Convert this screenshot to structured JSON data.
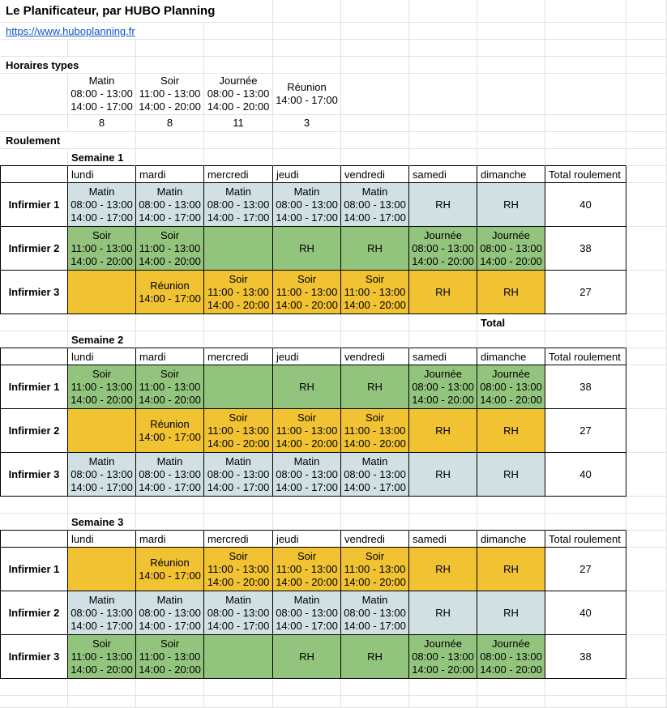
{
  "app": {
    "title": "Le Planificateur, par HUBO Planning",
    "link": "https://www.huboplanning.fr"
  },
  "colors": {
    "blue": "#d0e0e3",
    "green": "#93c47d",
    "orange": "#f1c232",
    "link_blue": "#1155cc",
    "gridline": "#e2e2e2",
    "table_border": "#000000"
  },
  "horaires_types": {
    "label": "Horaires types",
    "shifts": [
      {
        "name": "Matin",
        "times": [
          "08:00 - 13:00",
          "14:00 - 17:00"
        ],
        "hours": "8"
      },
      {
        "name": "Soir",
        "times": [
          "11:00 - 13:00",
          "14:00 - 20:00"
        ],
        "hours": "8"
      },
      {
        "name": "Journée",
        "times": [
          "08:00 - 13:00",
          "14:00 - 20:00"
        ],
        "hours": "11"
      },
      {
        "name": "Réunion",
        "times": [
          "14:00 - 17:00"
        ],
        "hours": "3"
      }
    ]
  },
  "roulement": {
    "label": "Roulement",
    "days": [
      "lundi",
      "mardi",
      "mercredi",
      "jeudi",
      "vendredi",
      "samedi",
      "dimanche"
    ],
    "total_header": "Total roulement",
    "weeks": [
      {
        "label": "Semaine 1",
        "after_label": "Total",
        "rows": [
          {
            "name": "Infirmier 1",
            "color": "blue",
            "total": "40",
            "cells": [
              [
                "Matin",
                "08:00 - 13:00",
                "14:00 - 17:00"
              ],
              [
                "Matin",
                "08:00 - 13:00",
                "14:00 - 17:00"
              ],
              [
                "Matin",
                "08:00 - 13:00",
                "14:00 - 17:00"
              ],
              [
                "Matin",
                "08:00 - 13:00",
                "14:00 - 17:00"
              ],
              [
                "Matin",
                "08:00 - 13:00",
                "14:00 - 17:00"
              ],
              [
                "RH"
              ],
              [
                "RH"
              ]
            ]
          },
          {
            "name": "Infirmier 2",
            "color": "green",
            "total": "38",
            "cells": [
              [
                "Soir",
                "11:00 - 13:00",
                "14:00 - 20:00"
              ],
              [
                "Soir",
                "11:00 - 13:00",
                "14:00 - 20:00"
              ],
              [],
              [
                "RH"
              ],
              [
                "RH"
              ],
              [
                "Journée",
                "08:00 - 13:00",
                "14:00 - 20:00"
              ],
              [
                "Journée",
                "08:00 - 13:00",
                "14:00 - 20:00"
              ]
            ]
          },
          {
            "name": "Infirmier 3",
            "color": "orange",
            "total": "27",
            "cells": [
              [],
              [
                "Réunion",
                "14:00 - 17:00"
              ],
              [
                "Soir",
                "11:00 - 13:00",
                "14:00 - 20:00"
              ],
              [
                "Soir",
                "11:00 - 13:00",
                "14:00 - 20:00"
              ],
              [
                "Soir",
                "11:00 - 13:00",
                "14:00 - 20:00"
              ],
              [
                "RH"
              ],
              [
                "RH"
              ]
            ]
          }
        ]
      },
      {
        "label": "Semaine 2",
        "after_label": "",
        "rows": [
          {
            "name": "Infirmier 1",
            "color": "green",
            "total": "38",
            "cells": [
              [
                "Soir",
                "11:00 - 13:00",
                "14:00 - 20:00"
              ],
              [
                "Soir",
                "11:00 - 13:00",
                "14:00 - 20:00"
              ],
              [],
              [
                "RH"
              ],
              [
                "RH"
              ],
              [
                "Journée",
                "08:00 - 13:00",
                "14:00 - 20:00"
              ],
              [
                "Journée",
                "08:00 - 13:00",
                "14:00 - 20:00"
              ]
            ]
          },
          {
            "name": "Infirmier 2",
            "color": "orange",
            "total": "27",
            "cells": [
              [],
              [
                "Réunion",
                "14:00 - 17:00"
              ],
              [
                "Soir",
                "11:00 - 13:00",
                "14:00 - 20:00"
              ],
              [
                "Soir",
                "11:00 - 13:00",
                "14:00 - 20:00"
              ],
              [
                "Soir",
                "11:00 - 13:00",
                "14:00 - 20:00"
              ],
              [
                "RH"
              ],
              [
                "RH"
              ]
            ]
          },
          {
            "name": "Infirmier 3",
            "color": "blue",
            "total": "40",
            "cells": [
              [
                "Matin",
                "08:00 - 13:00",
                "14:00 - 17:00"
              ],
              [
                "Matin",
                "08:00 - 13:00",
                "14:00 - 17:00"
              ],
              [
                "Matin",
                "08:00 - 13:00",
                "14:00 - 17:00"
              ],
              [
                "Matin",
                "08:00 - 13:00",
                "14:00 - 17:00"
              ],
              [
                "Matin",
                "08:00 - 13:00",
                "14:00 - 17:00"
              ],
              [
                "RH"
              ],
              [
                "RH"
              ]
            ]
          }
        ]
      },
      {
        "label": "Semaine 3",
        "after_label": "",
        "rows": [
          {
            "name": "Infirmier 1",
            "color": "orange",
            "total": "27",
            "cells": [
              [],
              [
                "Réunion",
                "14:00 - 17:00"
              ],
              [
                "Soir",
                "11:00 - 13:00",
                "14:00 - 20:00"
              ],
              [
                "Soir",
                "11:00 - 13:00",
                "14:00 - 20:00"
              ],
              [
                "Soir",
                "11:00 - 13:00",
                "14:00 - 20:00"
              ],
              [
                "RH"
              ],
              [
                "RH"
              ]
            ]
          },
          {
            "name": "Infirmier 2",
            "color": "blue",
            "total": "40",
            "cells": [
              [
                "Matin",
                "08:00 - 13:00",
                "14:00 - 17:00"
              ],
              [
                "Matin",
                "08:00 - 13:00",
                "14:00 - 17:00"
              ],
              [
                "Matin",
                "08:00 - 13:00",
                "14:00 - 17:00"
              ],
              [
                "Matin",
                "08:00 - 13:00",
                "14:00 - 17:00"
              ],
              [
                "Matin",
                "08:00 - 13:00",
                "14:00 - 17:00"
              ],
              [
                "RH"
              ],
              [
                "RH"
              ]
            ]
          },
          {
            "name": "Infirmier 3",
            "color": "green",
            "total": "38",
            "cells": [
              [
                "Soir",
                "11:00 - 13:00",
                "14:00 - 20:00"
              ],
              [
                "Soir",
                "11:00 - 13:00",
                "14:00 - 20:00"
              ],
              [],
              [
                "RH"
              ],
              [
                "RH"
              ],
              [
                "Journée",
                "08:00 - 13:00",
                "14:00 - 20:00"
              ],
              [
                "Journée",
                "08:00 - 13:00",
                "14:00 - 20:00"
              ]
            ]
          }
        ]
      }
    ]
  }
}
